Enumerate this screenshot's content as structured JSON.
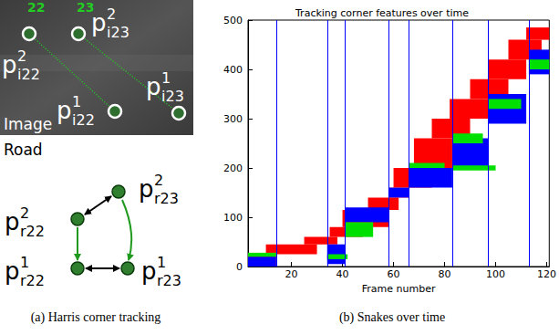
{
  "figure": {
    "captions": [
      "(a) Harris corner tracking",
      "(b) Snakes over time"
    ],
    "image_label": "Image",
    "image_tags": [
      "22",
      "23"
    ],
    "image_points": [
      {
        "base": "p",
        "sup": "2",
        "sub": "i22"
      },
      {
        "base": "p",
        "sup": "2",
        "sub": "i23"
      },
      {
        "base": "p",
        "sup": "1",
        "sub": "i22"
      },
      {
        "base": "p",
        "sup": "1",
        "sub": "i23"
      }
    ],
    "road_label": "Road",
    "road_points": [
      {
        "base": "p",
        "sup": "2",
        "sub": "r22"
      },
      {
        "base": "p",
        "sup": "2",
        "sub": "r23"
      },
      {
        "base": "p",
        "sup": "1",
        "sub": "r22"
      },
      {
        "base": "p",
        "sup": "1",
        "sub": "r23"
      }
    ]
  },
  "chart_data": {
    "type": "segments",
    "title": "Tracking corner features over time",
    "x_label": "Frame number",
    "xlim": [
      3,
      121
    ],
    "xticks": [
      20,
      40,
      60,
      80,
      100,
      120
    ],
    "ylim": [
      0,
      500
    ],
    "yticks": [
      0,
      100,
      200,
      300,
      400,
      500
    ],
    "grid": false,
    "vlines": {
      "color": "#0000ff",
      "values": [
        14,
        34,
        41,
        58,
        66,
        83,
        97,
        113
      ]
    },
    "series": [
      {
        "color": "#ff0000",
        "segments": [
          [
            3,
            14,
            0,
            25
          ],
          [
            10,
            30,
            25,
            45
          ],
          [
            25,
            38,
            45,
            60
          ],
          [
            35,
            48,
            60,
            80
          ],
          [
            40,
            58,
            80,
            115
          ],
          [
            50,
            62,
            115,
            140
          ],
          [
            58,
            66,
            140,
            160
          ],
          [
            60,
            75,
            160,
            200
          ],
          [
            68,
            83,
            200,
            260
          ],
          [
            75,
            90,
            260,
            300
          ],
          [
            82,
            97,
            300,
            340
          ],
          [
            90,
            105,
            340,
            380
          ],
          [
            97,
            112,
            380,
            420
          ],
          [
            105,
            118,
            420,
            460
          ],
          [
            112,
            121,
            460,
            485
          ]
        ]
      },
      {
        "color": "#0000ff",
        "segments": [
          [
            3,
            14,
            0,
            20
          ],
          [
            34,
            41,
            5,
            45
          ],
          [
            41,
            58,
            90,
            120
          ],
          [
            58,
            66,
            140,
            160
          ],
          [
            66,
            83,
            160,
            200
          ],
          [
            83,
            97,
            200,
            260
          ],
          [
            97,
            112,
            290,
            350
          ],
          [
            113,
            121,
            390,
            440
          ]
        ]
      },
      {
        "color": "#00e000",
        "segments": [
          [
            3,
            14,
            20,
            28
          ],
          [
            34,
            42,
            15,
            25
          ],
          [
            41,
            52,
            60,
            90
          ],
          [
            66,
            80,
            200,
            210
          ],
          [
            83,
            95,
            250,
            270
          ],
          [
            83,
            100,
            195,
            205
          ],
          [
            97,
            110,
            320,
            340
          ],
          [
            113,
            121,
            400,
            420
          ]
        ]
      }
    ]
  }
}
